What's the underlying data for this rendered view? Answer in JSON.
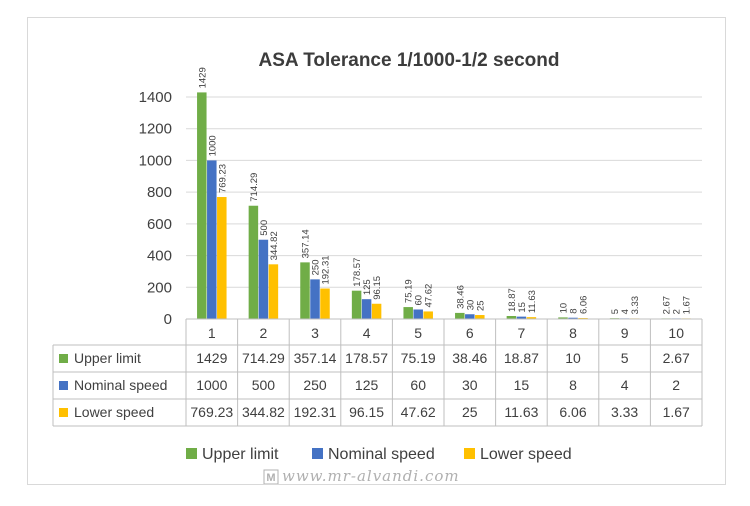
{
  "colors": {
    "upper": "#70ad47",
    "nominal": "#4472c4",
    "lower": "#ffc000",
    "grid": "#d9d9d9",
    "table_border": "#bfbfbf"
  },
  "chart_data": {
    "type": "bar",
    "title": "ASA  Tolerance 1/1000-1/2 second",
    "categories": [
      "1",
      "2",
      "3",
      "4",
      "5",
      "6",
      "7",
      "8",
      "9",
      "10"
    ],
    "y_ticks": [
      "0",
      "200",
      "400",
      "600",
      "800",
      "1000",
      "1200",
      "1400"
    ],
    "ylim": [
      0,
      1400
    ],
    "grid": true,
    "legend_position": "bottom",
    "data_table": true,
    "series": [
      {
        "name": "Upper limit",
        "color_key": "upper",
        "values": [
          1429,
          714.29,
          357.14,
          178.57,
          75.19,
          38.46,
          18.87,
          10,
          5,
          2.67
        ],
        "labels": [
          "1429",
          "714.29",
          "357.14",
          "178.57",
          "75.19",
          "38.46",
          "18.87",
          "10",
          "5",
          "2.67"
        ]
      },
      {
        "name": "Nominal speed",
        "color_key": "nominal",
        "values": [
          1000,
          500,
          250,
          125,
          60,
          30,
          15,
          8,
          4,
          2
        ],
        "labels": [
          "1000",
          "500",
          "250",
          "125",
          "60",
          "30",
          "15",
          "8",
          "4",
          "2"
        ]
      },
      {
        "name": "Lower speed",
        "color_key": "lower",
        "values": [
          769.23,
          344.82,
          192.31,
          96.15,
          47.62,
          25,
          11.63,
          6.06,
          3.33,
          1.67
        ],
        "labels": [
          "769.23",
          "344.82",
          "192.31",
          "96.15",
          "47.62",
          "25",
          "11.63",
          "6.06",
          "3.33",
          "1.67"
        ]
      }
    ]
  },
  "watermark": {
    "text": "www.mr-alvandi.com",
    "logo_text": "M"
  }
}
